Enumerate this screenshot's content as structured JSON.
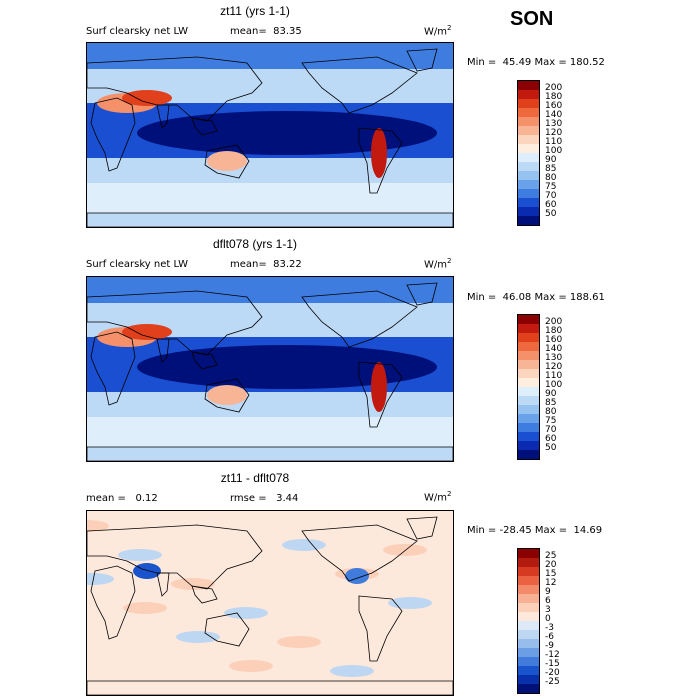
{
  "season": "SON",
  "panels": [
    {
      "title": "zt11 (yrs 1-1)",
      "left": "Surf clearsky net LW",
      "mean": "mean=  83.35",
      "units_base": "W/m",
      "units_exp": "2",
      "minmax": "Min =  45.49 Max = 180.52",
      "levels": [
        "200",
        "180",
        "160",
        "140",
        "130",
        "120",
        "110",
        "100",
        "90",
        "85",
        "80",
        "75",
        "70",
        "60",
        "50"
      ],
      "colors": [
        "#8b0000",
        "#c21a0e",
        "#e0401c",
        "#ee6a3e",
        "#f4906a",
        "#f8b596",
        "#fbd5bd",
        "#fdeedf",
        "#dfeefb",
        "#bcd9f6",
        "#96c2f0",
        "#6aa2ea",
        "#3f7ce0",
        "#1a4fd2",
        "#0a2ab0",
        "#00107a"
      ]
    },
    {
      "title": "dflt078 (yrs 1-1)",
      "left": "Surf clearsky net LW",
      "mean": "mean=  83.22",
      "units_base": "W/m",
      "units_exp": "2",
      "minmax": "Min =  46.08 Max = 188.61",
      "levels": [
        "200",
        "180",
        "160",
        "140",
        "130",
        "120",
        "110",
        "100",
        "90",
        "85",
        "80",
        "75",
        "70",
        "60",
        "50"
      ],
      "colors": [
        "#8b0000",
        "#c21a0e",
        "#e0401c",
        "#ee6a3e",
        "#f4906a",
        "#f8b596",
        "#fbd5bd",
        "#fdeedf",
        "#dfeefb",
        "#bcd9f6",
        "#96c2f0",
        "#6aa2ea",
        "#3f7ce0",
        "#1a4fd2",
        "#0a2ab0",
        "#00107a"
      ]
    },
    {
      "title": "zt11 - dflt078",
      "left": "mean =   0.12",
      "mean": "rmse =   3.44",
      "units_base": "W/m",
      "units_exp": "2",
      "minmax": "Min = -28.45 Max =  14.69",
      "levels": [
        "25",
        "20",
        "15",
        "12",
        "9",
        "6",
        "3",
        "0",
        "-3",
        "-6",
        "-9",
        "-12",
        "-15",
        "-20",
        "-25"
      ],
      "colors": [
        "#8b0000",
        "#b31a10",
        "#d63a20",
        "#ea6242",
        "#f38b6a",
        "#f8b094",
        "#fbcfb8",
        "#fde8dc",
        "#dde9f7",
        "#bdd6f2",
        "#97bdec",
        "#6c9ee6",
        "#417cdc",
        "#1a54cc",
        "#0830aa",
        "#001278"
      ]
    }
  ]
}
